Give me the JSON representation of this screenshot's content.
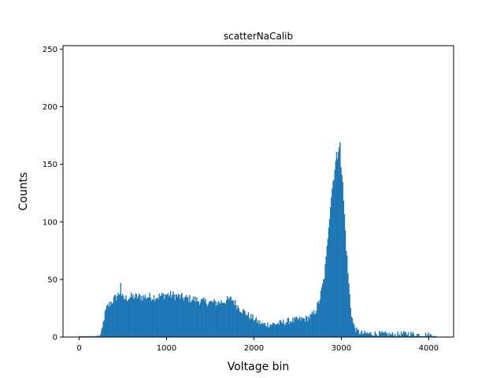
{
  "chart_data": {
    "type": "bar",
    "title": "scatterNaCalib",
    "xlabel": "Voltage bin",
    "ylabel": "Counts",
    "xlim": [
      -185,
      4285
    ],
    "ylim": [
      0,
      253
    ],
    "xticks": [
      0,
      1000,
      2000,
      3000,
      4000
    ],
    "yticks": [
      0,
      50,
      100,
      150,
      200,
      250
    ],
    "color": "#1f77b4",
    "grid": false,
    "bin_start": 0,
    "bin_width": 10,
    "envelope": [
      [
        0,
        0
      ],
      [
        200,
        0
      ],
      [
        240,
        1
      ],
      [
        260,
        5
      ],
      [
        280,
        15
      ],
      [
        300,
        22
      ],
      [
        320,
        26
      ],
      [
        350,
        29
      ],
      [
        400,
        33
      ],
      [
        450,
        37
      ],
      [
        470,
        40
      ],
      [
        500,
        33
      ],
      [
        600,
        35
      ],
      [
        700,
        35
      ],
      [
        800,
        35
      ],
      [
        900,
        35
      ],
      [
        1000,
        37
      ],
      [
        1100,
        36
      ],
      [
        1200,
        34
      ],
      [
        1300,
        33
      ],
      [
        1400,
        31
      ],
      [
        1500,
        30
      ],
      [
        1600,
        30
      ],
      [
        1700,
        32
      ],
      [
        1750,
        33
      ],
      [
        1800,
        28
      ],
      [
        1850,
        24
      ],
      [
        1900,
        21
      ],
      [
        1950,
        18
      ],
      [
        2000,
        16
      ],
      [
        2050,
        13
      ],
      [
        2100,
        11
      ],
      [
        2200,
        11
      ],
      [
        2300,
        12
      ],
      [
        2400,
        14
      ],
      [
        2500,
        15
      ],
      [
        2600,
        16
      ],
      [
        2650,
        18
      ],
      [
        2700,
        22
      ],
      [
        2750,
        32
      ],
      [
        2800,
        50
      ],
      [
        2830,
        70
      ],
      [
        2850,
        95
      ],
      [
        2880,
        120
      ],
      [
        2920,
        145
      ],
      [
        2950,
        158
      ],
      [
        2980,
        162
      ],
      [
        3000,
        150
      ],
      [
        3020,
        125
      ],
      [
        3050,
        85
      ],
      [
        3080,
        50
      ],
      [
        3110,
        22
      ],
      [
        3140,
        10
      ],
      [
        3180,
        5
      ],
      [
        3250,
        3
      ],
      [
        3400,
        3
      ],
      [
        3600,
        2
      ],
      [
        3750,
        3
      ],
      [
        3900,
        2
      ],
      [
        4000,
        2
      ],
      [
        4040,
        1
      ],
      [
        4060,
        0
      ],
      [
        4095,
        0
      ]
    ],
    "noise_amplitude": 5,
    "peaks": [
      [
        470,
        47
      ],
      [
        2980,
        169
      ],
      [
        2970,
        165
      ],
      [
        2960,
        161
      ]
    ]
  }
}
